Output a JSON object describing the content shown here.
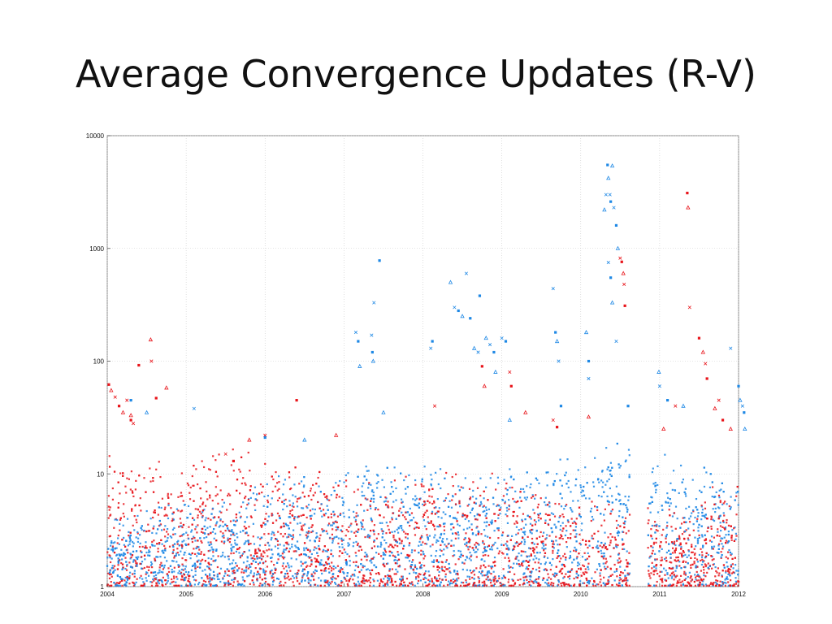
{
  "slide": {
    "title": "Average Convergence Updates (R-V)"
  },
  "chart_data": {
    "type": "scatter",
    "title": "Average Convergence Updates (R-V)",
    "xlabel": "",
    "ylabel": "",
    "x_scale": "time",
    "y_scale": "log",
    "xlim": [
      2004,
      2012
    ],
    "ylim": [
      1,
      10000
    ],
    "grid": true,
    "x_ticks": [
      "2004",
      "2005",
      "2006",
      "2007",
      "2008",
      "2009",
      "2010",
      "2011",
      "2012"
    ],
    "y_ticks": [
      "1",
      "10",
      "100",
      "1000",
      "10000"
    ],
    "colors": {
      "red_series": "#e8141a",
      "blue_series": "#1e88e5",
      "grid": "#c8c8c8"
    },
    "series": [
      {
        "color": "#e8141a",
        "marker": "mixed (x, circle, square, triangle)",
        "note_points_sampled": true,
        "points": [
          [
            2004.02,
            62
          ],
          [
            2004.05,
            55
          ],
          [
            2004.1,
            48
          ],
          [
            2004.15,
            40
          ],
          [
            2004.2,
            35
          ],
          [
            2004.25,
            45
          ],
          [
            2004.3,
            30
          ],
          [
            2004.3,
            33
          ],
          [
            2004.33,
            28
          ],
          [
            2004.4,
            92
          ],
          [
            2004.55,
            155
          ],
          [
            2004.56,
            100
          ],
          [
            2004.62,
            47
          ],
          [
            2004.75,
            58
          ],
          [
            2005.5,
            15
          ],
          [
            2005.6,
            13
          ],
          [
            2005.8,
            20
          ],
          [
            2006.0,
            22
          ],
          [
            2006.4,
            45
          ],
          [
            2006.9,
            22
          ],
          [
            2008.15,
            40
          ],
          [
            2008.75,
            90
          ],
          [
            2008.78,
            60
          ],
          [
            2009.1,
            80
          ],
          [
            2009.12,
            60
          ],
          [
            2009.3,
            35
          ],
          [
            2009.65,
            30
          ],
          [
            2009.7,
            26
          ],
          [
            2010.1,
            32
          ],
          [
            2010.5,
            820
          ],
          [
            2010.52,
            760
          ],
          [
            2010.54,
            600
          ],
          [
            2010.55,
            480
          ],
          [
            2010.56,
            310
          ],
          [
            2011.05,
            25
          ],
          [
            2011.2,
            40
          ],
          [
            2011.35,
            3100
          ],
          [
            2011.36,
            2300
          ],
          [
            2011.38,
            300
          ],
          [
            2011.5,
            160
          ],
          [
            2011.55,
            120
          ],
          [
            2011.58,
            95
          ],
          [
            2011.6,
            70
          ],
          [
            2011.7,
            38
          ],
          [
            2011.75,
            45
          ],
          [
            2011.8,
            30
          ],
          [
            2011.9,
            25
          ]
        ]
      },
      {
        "color": "#1e88e5",
        "marker": "mixed (x, circle, square, triangle)",
        "note_points_sampled": true,
        "points": [
          [
            2004.3,
            45
          ],
          [
            2004.5,
            35
          ],
          [
            2005.1,
            38
          ],
          [
            2006.0,
            21
          ],
          [
            2006.5,
            20
          ],
          [
            2007.15,
            180
          ],
          [
            2007.18,
            150
          ],
          [
            2007.2,
            90
          ],
          [
            2007.35,
            170
          ],
          [
            2007.36,
            120
          ],
          [
            2007.37,
            100
          ],
          [
            2007.38,
            330
          ],
          [
            2007.45,
            780
          ],
          [
            2007.5,
            35
          ],
          [
            2008.1,
            130
          ],
          [
            2008.12,
            150
          ],
          [
            2008.35,
            500
          ],
          [
            2008.4,
            300
          ],
          [
            2008.45,
            280
          ],
          [
            2008.5,
            250
          ],
          [
            2008.55,
            600
          ],
          [
            2008.6,
            240
          ],
          [
            2008.65,
            130
          ],
          [
            2008.7,
            120
          ],
          [
            2008.72,
            380
          ],
          [
            2008.8,
            160
          ],
          [
            2008.85,
            140
          ],
          [
            2008.9,
            120
          ],
          [
            2008.92,
            80
          ],
          [
            2009.0,
            160
          ],
          [
            2009.05,
            150
          ],
          [
            2009.1,
            30
          ],
          [
            2009.65,
            440
          ],
          [
            2009.68,
            180
          ],
          [
            2009.7,
            150
          ],
          [
            2009.72,
            100
          ],
          [
            2009.75,
            40
          ],
          [
            2010.07,
            180
          ],
          [
            2010.1,
            70
          ],
          [
            2010.1,
            100
          ],
          [
            2010.3,
            2200
          ],
          [
            2010.32,
            3000
          ],
          [
            2010.34,
            5500
          ],
          [
            2010.35,
            4200
          ],
          [
            2010.37,
            3000
          ],
          [
            2010.38,
            2600
          ],
          [
            2010.4,
            5400
          ],
          [
            2010.42,
            2300
          ],
          [
            2010.45,
            1600
          ],
          [
            2010.47,
            1000
          ],
          [
            2010.35,
            750
          ],
          [
            2010.38,
            550
          ],
          [
            2010.4,
            330
          ],
          [
            2010.45,
            150
          ],
          [
            2010.6,
            40
          ],
          [
            2010.99,
            80
          ],
          [
            2011.0,
            60
          ],
          [
            2011.1,
            45
          ],
          [
            2011.3,
            40
          ],
          [
            2011.9,
            130
          ],
          [
            2012.0,
            60
          ],
          [
            2012.02,
            45
          ],
          [
            2012.05,
            40
          ],
          [
            2012.07,
            35
          ],
          [
            2012.08,
            25
          ]
        ]
      }
    ],
    "dense_band": {
      "description": "dense cloud of points between 1 and ~20 across entire range, gap around 2010.6-2010.8",
      "red_density": [
        [
          2004.0,
          12
        ],
        [
          2004.6,
          10
        ],
        [
          2005.5,
          14
        ],
        [
          2006.5,
          8
        ],
        [
          2007.5,
          7
        ],
        [
          2008.5,
          9
        ],
        [
          2009.5,
          6
        ],
        [
          2010.5,
          4
        ],
        [
          2011.2,
          4
        ],
        [
          2011.8,
          6
        ]
      ],
      "blue_density": [
        [
          2004.0,
          3
        ],
        [
          2004.6,
          4
        ],
        [
          2005.5,
          5
        ],
        [
          2006.5,
          8
        ],
        [
          2007.5,
          10
        ],
        [
          2008.5,
          8
        ],
        [
          2009.5,
          10
        ],
        [
          2010.5,
          15
        ],
        [
          2011.2,
          10
        ],
        [
          2011.8,
          8
        ]
      ]
    }
  }
}
